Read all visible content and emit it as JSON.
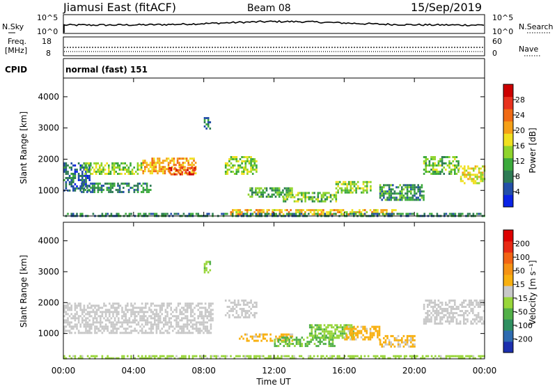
{
  "header": {
    "site": "Jiamusi East (fitACF)",
    "beam": "Beam 08",
    "date": "15/Sep/2019"
  },
  "noise_panel": {
    "left_label": "N.Sky",
    "right_label": "N.Search",
    "left_ticks": [
      "10^5",
      "10^0"
    ],
    "right_ticks": [
      "10^5",
      "10^0"
    ]
  },
  "freq_panel": {
    "left_label_1": "Freq.",
    "left_label_2": "[MHz]",
    "right_label": "Nave",
    "left_ticks": [
      "18",
      "8"
    ],
    "right_ticks": [
      "60",
      "0"
    ]
  },
  "cpid_panel": {
    "label": "CPID",
    "mode_text": "normal (fast) 151"
  },
  "power_colorbar": {
    "label": "Power [dB]",
    "ticks": [
      "28",
      "24",
      "20",
      "16",
      "12",
      "8",
      "4"
    ],
    "colors": [
      "#0a23e6",
      "#234fa8",
      "#2e7b55",
      "#3caa3c",
      "#8fd42c",
      "#f0e020",
      "#f5a018",
      "#f06a14",
      "#e8321e",
      "#cc0000"
    ]
  },
  "velocity_colorbar": {
    "label": "Velocity [m s⁻¹]",
    "ticks": [
      "200",
      "100",
      "50",
      "15",
      "-15",
      "-50",
      "-100",
      "-200"
    ],
    "colors": [
      "#1c2fae",
      "#2e6bb0",
      "#2f8f60",
      "#52b048",
      "#98d63a",
      "#c8c8c8",
      "#f8b010",
      "#f59214",
      "#f26414",
      "#e82a14",
      "#dd0000"
    ]
  },
  "chart_data": [
    {
      "type": "heatmap",
      "name": "power",
      "ylabel": "Slant Range [km]",
      "ylim": [
        180,
        4600
      ],
      "yticks": [
        "1000",
        "2000",
        "3000",
        "4000"
      ],
      "xlim": [
        "00:00",
        "24:00"
      ],
      "value_range": [
        0,
        30
      ],
      "patches": [
        {
          "t": [
            0.0,
            1.5
          ],
          "r": [
            1000,
            1900
          ],
          "v": 6
        },
        {
          "t": [
            1.2,
            4.5
          ],
          "r": [
            1500,
            1900
          ],
          "v": 13
        },
        {
          "t": [
            4.5,
            7.5
          ],
          "r": [
            1550,
            2050
          ],
          "v": 19
        },
        {
          "t": [
            6.0,
            7.5
          ],
          "r": [
            1500,
            1750
          ],
          "v": 25
        },
        {
          "t": [
            1.0,
            5.0
          ],
          "r": [
            950,
            1250
          ],
          "v": 8
        },
        {
          "t": [
            8.0,
            8.4
          ],
          "r": [
            2950,
            3350
          ],
          "v": 7
        },
        {
          "t": [
            9.2,
            11.0
          ],
          "r": [
            1550,
            2100
          ],
          "v": 13
        },
        {
          "t": [
            10.5,
            13.0
          ],
          "r": [
            800,
            1100
          ],
          "v": 11
        },
        {
          "t": [
            12.5,
            15.5
          ],
          "r": [
            650,
            950
          ],
          "v": 12
        },
        {
          "t": [
            15.5,
            17.5
          ],
          "r": [
            900,
            1300
          ],
          "v": 13
        },
        {
          "t": [
            18.0,
            20.5
          ],
          "r": [
            700,
            1200
          ],
          "v": 9
        },
        {
          "t": [
            20.5,
            22.5
          ],
          "r": [
            1500,
            2100
          ],
          "v": 12
        },
        {
          "t": [
            22.5,
            24.0
          ],
          "r": [
            1250,
            1800
          ],
          "v": 16
        },
        {
          "t": [
            9.5,
            19.0
          ],
          "r": [
            200,
            400
          ],
          "v": 18
        },
        {
          "t": [
            0.0,
            24.0
          ],
          "r": [
            180,
            280
          ],
          "v": 8
        }
      ]
    },
    {
      "type": "heatmap",
      "name": "velocity",
      "ylabel": "Slant Range [km]",
      "xlabel": "Time UT",
      "ylim": [
        180,
        4600
      ],
      "yticks": [
        "1000",
        "2000",
        "3000",
        "4000"
      ],
      "xlim": [
        "00:00",
        "24:00"
      ],
      "xticks": [
        "00:00",
        "04:00",
        "08:00",
        "12:00",
        "16:00",
        "20:00",
        "00:00"
      ],
      "value_range": [
        -200,
        200
      ],
      "patches": [
        {
          "t": [
            0.0,
            8.5
          ],
          "r": [
            1000,
            2000
          ],
          "v": 0
        },
        {
          "t": [
            8.0,
            8.4
          ],
          "r": [
            2950,
            3350
          ],
          "v": -45
        },
        {
          "t": [
            9.2,
            11.0
          ],
          "r": [
            1550,
            2100
          ],
          "v": 0
        },
        {
          "t": [
            10.0,
            13.0
          ],
          "r": [
            750,
            1000
          ],
          "v": 30
        },
        {
          "t": [
            12.0,
            15.5
          ],
          "r": [
            600,
            900
          ],
          "v": -60
        },
        {
          "t": [
            14.0,
            16.5
          ],
          "r": [
            850,
            1300
          ],
          "v": -50
        },
        {
          "t": [
            16.0,
            18.0
          ],
          "r": [
            800,
            1250
          ],
          "v": 30
        },
        {
          "t": [
            18.0,
            20.0
          ],
          "r": [
            600,
            950
          ],
          "v": 25
        },
        {
          "t": [
            20.5,
            24.0
          ],
          "r": [
            1300,
            2100
          ],
          "v": 0
        },
        {
          "t": [
            0.0,
            24.0
          ],
          "r": [
            180,
            300
          ],
          "v": -30
        }
      ]
    }
  ]
}
